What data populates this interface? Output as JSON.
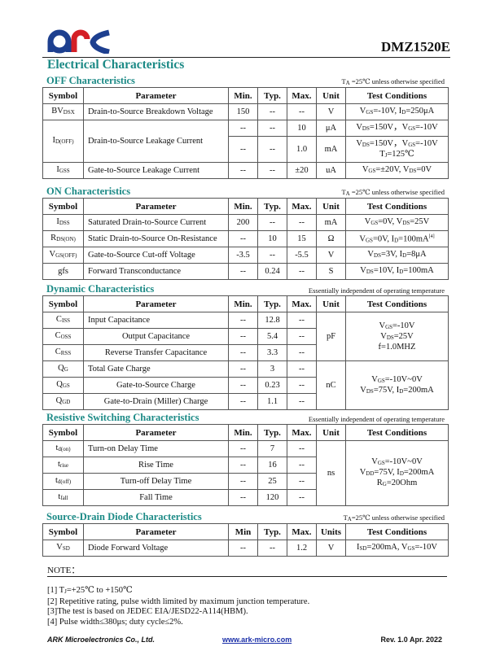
{
  "header": {
    "logo_text": "ark",
    "part_number": "DMZ1520E",
    "title": "Electrical Characteristics",
    "colors": {
      "logo_blue": "#1d3f8f",
      "logo_red": "#d41f26",
      "heading_teal": "#1c8a86"
    }
  },
  "sections": [
    {
      "title": "OFF Characteristics",
      "note": [
        "T",
        {
          "sub": "A"
        },
        " =25℃  unless otherwise specified"
      ],
      "headers": [
        "Symbol",
        "Parameter",
        "Min.",
        "Typ.",
        "Max.",
        "Unit",
        "Test Conditions"
      ],
      "rows": [
        [
          [
            "BV",
            {
              "sub": "DSX"
            }
          ],
          [
            "Drain-to-Source Breakdown Voltage"
          ],
          [
            "150"
          ],
          [
            "--"
          ],
          [
            "--"
          ],
          [
            "V"
          ],
          [
            "V",
            {
              "sub": "GS"
            },
            "=-10V, I",
            {
              "sub": "D"
            },
            "=250μA"
          ]
        ],
        [
          {
            "rowspan": 2,
            "v": [
              "I",
              {
                "sub": "D(OFF)"
              }
            ]
          },
          {
            "rowspan": 2,
            "v": [
              "Drain-to-Source Leakage Current"
            ]
          },
          [
            "--"
          ],
          [
            "--"
          ],
          [
            "10"
          ],
          [
            "μA"
          ],
          [
            "V",
            {
              "sub": "DS"
            },
            "=150V，V",
            {
              "sub": "GS"
            },
            "=-10V"
          ]
        ],
        [
          [
            "--"
          ],
          [
            "--"
          ],
          [
            "1.0"
          ],
          [
            "mA"
          ],
          [
            "V",
            {
              "sub": "DS"
            },
            "=150V，V",
            {
              "sub": "GS"
            },
            "=-10V\nT",
            {
              "sub": "J"
            },
            "=125℃"
          ]
        ],
        [
          [
            "I",
            {
              "sub": "GSS"
            }
          ],
          [
            "Gate-to-Source Leakage Current"
          ],
          [
            "--"
          ],
          [
            "--"
          ],
          [
            "±20"
          ],
          [
            "uA"
          ],
          [
            "V",
            {
              "sub": "GS"
            },
            "=±20V, V",
            {
              "sub": "DS"
            },
            "=0V"
          ]
        ]
      ]
    },
    {
      "title": "ON Characteristics",
      "note": [
        "T",
        {
          "sub": "A"
        },
        " =25℃  unless otherwise specified"
      ],
      "headers": [
        "Symbol",
        "Parameter",
        "Min.",
        "Typ.",
        "Max.",
        "Unit",
        "Test Conditions"
      ],
      "rows": [
        [
          [
            "I",
            {
              "sub": "DSS"
            }
          ],
          [
            "Saturated Drain-to-Source Current"
          ],
          [
            "200"
          ],
          [
            "--"
          ],
          [
            "--"
          ],
          [
            "mA"
          ],
          [
            "V",
            {
              "sub": "GS"
            },
            "=0V, V",
            {
              "sub": "DS"
            },
            "=25V"
          ]
        ],
        [
          [
            "R",
            {
              "sub": "DS(ON)"
            }
          ],
          [
            "Static Drain-to-Source On-Resistance"
          ],
          [
            "--"
          ],
          [
            "10"
          ],
          [
            "15"
          ],
          [
            "Ω"
          ],
          [
            "V",
            {
              "sub": "GS"
            },
            "=0V, I",
            {
              "sub": "D"
            },
            "=100mA",
            {
              "sup": "[4]"
            }
          ]
        ],
        [
          [
            "V",
            {
              "sub": "GS(OFF)"
            }
          ],
          [
            "Gate-to-Source Cut-off Voltage"
          ],
          [
            "-3.5"
          ],
          [
            "--"
          ],
          [
            "-5.5"
          ],
          [
            "V"
          ],
          [
            "V",
            {
              "sub": "DS"
            },
            "=3V, I",
            {
              "sub": "D"
            },
            "=8μA"
          ]
        ],
        [
          [
            "gfs"
          ],
          [
            "Forward Transconductance"
          ],
          [
            "--"
          ],
          [
            "0.24"
          ],
          [
            "--"
          ],
          [
            "S"
          ],
          [
            "V",
            {
              "sub": "DS"
            },
            "=10V, I",
            {
              "sub": "D"
            },
            "=100mA"
          ]
        ]
      ]
    },
    {
      "title": "Dynamic Characteristics",
      "note": [
        "Essentially independent of operating temperature"
      ],
      "headers": [
        "Symbol",
        "Parameter",
        "Min.",
        "Typ.",
        "Max.",
        "Unit",
        "Test Conditions"
      ],
      "rows": [
        [
          [
            "C",
            {
              "sub": "ISS"
            }
          ],
          [
            "Input Capacitance"
          ],
          [
            "--"
          ],
          [
            "12.8"
          ],
          [
            "--"
          ],
          {
            "rowspan": 3,
            "v": [
              "pF"
            ]
          },
          {
            "rowspan": 3,
            "v": [
              "V",
              {
                "sub": "GS"
              },
              "=-10V\nV",
              {
                "sub": "DS"
              },
              "=25V\nf=1.0MHZ"
            ]
          }
        ],
        [
          [
            "C",
            {
              "sub": "OSS"
            }
          ],
          [
            "Output Capacitance"
          ],
          [
            "--"
          ],
          [
            "5.4"
          ],
          [
            "--"
          ]
        ],
        [
          [
            "C",
            {
              "sub": "RSS"
            }
          ],
          [
            "Reverse Transfer Capacitance"
          ],
          [
            "--"
          ],
          [
            "3.3"
          ],
          [
            "--"
          ]
        ],
        [
          [
            "Q",
            {
              "sub": "G"
            }
          ],
          [
            "Total Gate Charge"
          ],
          [
            "--"
          ],
          [
            "3"
          ],
          [
            "--"
          ],
          {
            "rowspan": 3,
            "v": [
              "nC"
            ]
          },
          {
            "rowspan": 3,
            "v": [
              "V",
              {
                "sub": "GS"
              },
              "=-10V~0V\nV",
              {
                "sub": "DS"
              },
              "=75V, I",
              {
                "sub": "D"
              },
              "=200mA"
            ]
          }
        ],
        [
          [
            "Q",
            {
              "sub": "GS"
            }
          ],
          [
            "Gate-to-Source Charge"
          ],
          [
            "--"
          ],
          [
            "0.23"
          ],
          [
            "--"
          ]
        ],
        [
          [
            "Q",
            {
              "sub": "GD"
            }
          ],
          [
            "Gate-to-Drain (Miller) Charge"
          ],
          [
            "--"
          ],
          [
            "1.1"
          ],
          [
            "--"
          ]
        ]
      ]
    },
    {
      "title": "Resistive Switching Characteristics",
      "note": [
        "Essentially independent of operating temperature"
      ],
      "headers": [
        "Symbol",
        "Parameter",
        "Min.",
        "Typ.",
        "Max.",
        "Unit",
        "Test Conditions"
      ],
      "rows": [
        [
          [
            "t",
            {
              "sub": "d(on)"
            }
          ],
          [
            "Turn-on Delay Time"
          ],
          [
            "--"
          ],
          [
            "7"
          ],
          [
            "--"
          ],
          {
            "rowspan": 4,
            "v": [
              "ns"
            ]
          },
          {
            "rowspan": 4,
            "v": [
              "V",
              {
                "sub": "GS"
              },
              "=-10V~0V\nV",
              {
                "sub": "DD"
              },
              "=75V, I",
              {
                "sub": "D"
              },
              "=200mA\nR",
              {
                "sub": "G"
              },
              "=20Ohm"
            ]
          }
        ],
        [
          [
            "t",
            {
              "sub": "rise"
            }
          ],
          [
            "Rise Time"
          ],
          [
            "--"
          ],
          [
            "16"
          ],
          [
            "--"
          ]
        ],
        [
          [
            "t",
            {
              "sub": "d(off)"
            }
          ],
          [
            "Turn-off Delay Time"
          ],
          [
            "--"
          ],
          [
            "25"
          ],
          [
            "--"
          ]
        ],
        [
          [
            "t",
            {
              "sub": "fall"
            }
          ],
          [
            "Fall Time"
          ],
          [
            "--"
          ],
          [
            "120"
          ],
          [
            "--"
          ]
        ]
      ]
    },
    {
      "title": "Source-Drain Diode Characteristics",
      "note": [
        "T",
        {
          "sub": "A"
        },
        "=25℃  unless otherwise specified"
      ],
      "headers": [
        "Symbol",
        "Parameter",
        "Min",
        "Typ.",
        "Max.",
        "Units",
        "Test Conditions"
      ],
      "rows": [
        [
          [
            "V",
            {
              "sub": "SD"
            }
          ],
          [
            "Diode Forward Voltage"
          ],
          [
            "--"
          ],
          [
            "--"
          ],
          [
            "1.2"
          ],
          [
            "V"
          ],
          [
            "I",
            {
              "sub": "SD"
            },
            "=200mA, V",
            {
              "sub": "GS"
            },
            "=-10V"
          ]
        ]
      ]
    }
  ],
  "notes": {
    "title": "NOTE：",
    "items": [
      [
        "[1] T",
        {
          "sub": "J"
        },
        "=+25℃  to +150℃"
      ],
      [
        "[2] Repetitive rating, pulse width limited by maximum junction temperature."
      ],
      [
        "[3]The test is based on JEDEC EIA/JESD22-A114(HBM)."
      ],
      [
        "[4] Pulse width≤380μs; duty cycle≤2%."
      ]
    ]
  },
  "footer": {
    "company": "ARK Microelectronics Co., Ltd.",
    "website": "www.ark-micro.com",
    "revision": "Rev. 1.0 Apr. 2022"
  }
}
